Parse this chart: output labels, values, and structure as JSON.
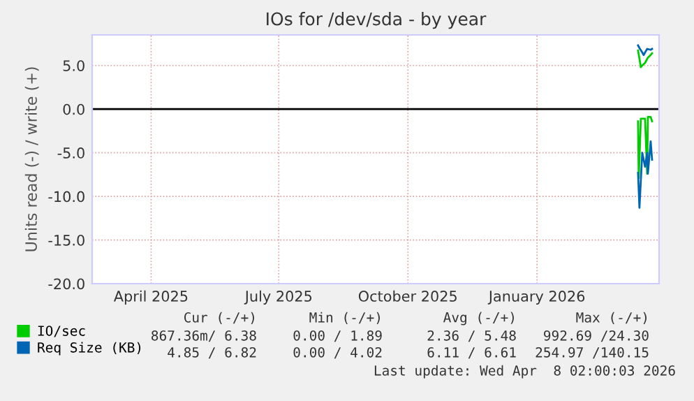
{
  "chart_data": {
    "type": "line",
    "title": "IOs for /dev/sda - by year",
    "ylabel": "Units read (-) / write (+)",
    "xlim": [
      "2025-03-05",
      "2026-04-13"
    ],
    "xticks": [
      {
        "value": "2025-04-16",
        "label": "April 2025"
      },
      {
        "value": "2025-07-16",
        "label": "July 2025"
      },
      {
        "value": "2025-10-16",
        "label": "October 2025"
      },
      {
        "value": "2026-01-16",
        "label": "January 2026"
      }
    ],
    "ylim": [
      -20,
      8.5
    ],
    "yticks": [
      {
        "value": 5,
        "label": "5.0"
      },
      {
        "value": 0,
        "label": "0.0"
      },
      {
        "value": -5,
        "label": "-5.0"
      },
      {
        "value": -10,
        "label": "-10.0"
      },
      {
        "value": -15,
        "label": "-15.0"
      },
      {
        "value": -20,
        "label": "-20.0"
      }
    ],
    "grid": true,
    "legend": "bottom",
    "ref_lines": [
      {
        "axis": "y",
        "value": 0,
        "color": "#000000"
      }
    ],
    "series": [
      {
        "name": "IO/sec",
        "color": "#00cc00",
        "x": [
          "2026-03-29T00:00",
          "2026-03-30T00:00",
          "2026-03-31T00:00",
          "2026-04-01T00:00",
          "2026-04-03T00:00",
          "2026-04-05T00:00",
          "2026-04-07T00:00",
          "2026-04-08T00:00"
        ],
        "values": [
          6.7,
          5.8,
          4.8,
          5.0,
          5.3,
          5.9,
          6.2,
          6.4
        ]
      },
      {
        "color": "#00cc00",
        "x": [
          "2026-03-29T00:00",
          "2026-03-29T12:00",
          "2026-03-31T00:00",
          "2026-04-03T00:00",
          "2026-04-04T12:00",
          "2026-04-05T00:00",
          "2026-04-07T00:00",
          "2026-04-08T00:00"
        ],
        "values": [
          -1.4,
          -7.9,
          -1.1,
          -1.1,
          -7.4,
          -0.9,
          -0.9,
          -1.4
        ]
      },
      {
        "name": "Req Size (KB)",
        "color": "#0066b3",
        "x": [
          "2026-03-29T00:00",
          "2026-03-30T00:00",
          "2026-04-01T00:00",
          "2026-04-02T00:00",
          "2026-04-03T00:00",
          "2026-04-04T12:00",
          "2026-04-07T00:00",
          "2026-04-08T00:00"
        ],
        "values": [
          7.3,
          7.0,
          6.5,
          6.2,
          6.5,
          6.9,
          6.8,
          6.9
        ]
      },
      {
        "color": "#0066b3",
        "x": [
          "2026-03-29T00:00",
          "2026-03-30T00:00",
          "2026-04-01T00:00",
          "2026-04-03T00:00",
          "2026-04-04T12:00",
          "2026-04-05T00:00",
          "2026-04-07T00:00",
          "2026-04-08T00:00"
        ],
        "values": [
          -7.3,
          -11.3,
          -5.0,
          -6.6,
          -5.0,
          -7.4,
          -3.7,
          -5.8
        ]
      }
    ],
    "annotations": [
      "Cur (-/+)",
      "Min (-/+)",
      "Avg (-/+)",
      "Max (-/+)",
      "867.36m/ 6.38",
      "0.00 / 1.89",
      "2.36 / 5.48",
      "992.69 /24.30",
      "4.85 / 6.82",
      "0.00 / 4.02",
      "6.11 / 6.61",
      "254.97 /140.15",
      "Last update: Wed Apr  8 02:00:03 2026"
    ]
  }
}
